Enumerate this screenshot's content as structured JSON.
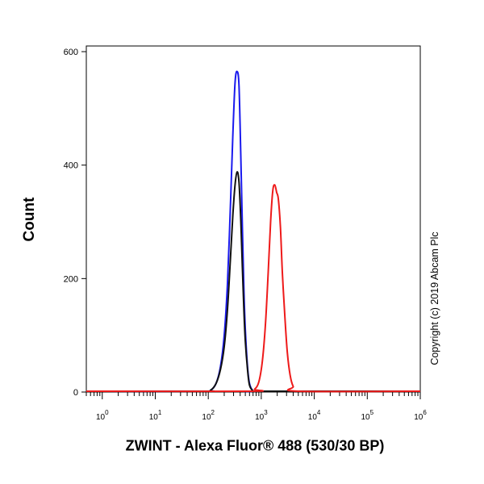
{
  "chart_data": {
    "type": "histogram",
    "xlabel": "ZWINT - Alexa Fluor® 488 (530/30 BP)",
    "ylabel": "Count",
    "copyright": "Copyright (c) 2019 Abcam Plc",
    "x_scale": "log",
    "xlim": [
      0.5,
      1000000
    ],
    "ylim": [
      0,
      610
    ],
    "yticks": [
      0,
      200,
      400,
      600
    ],
    "xticks": [
      {
        "base": "10",
        "exp": "0",
        "value": 1
      },
      {
        "base": "10",
        "exp": "1",
        "value": 10
      },
      {
        "base": "10",
        "exp": "2",
        "value": 100
      },
      {
        "base": "10",
        "exp": "3",
        "value": 1000
      },
      {
        "base": "10",
        "exp": "4",
        "value": 10000
      },
      {
        "base": "10",
        "exp": "5",
        "value": 100000
      },
      {
        "base": "10",
        "exp": "6",
        "value": 1000000
      }
    ],
    "series": [
      {
        "color": "#1a1aee",
        "x": [
          0.5,
          80,
          110,
          140,
          170,
          200,
          230,
          260,
          290,
          320,
          350,
          380,
          410,
          440,
          470,
          500,
          550,
          600,
          700,
          850,
          1000000
        ],
        "y": [
          0,
          0,
          3,
          15,
          45,
          100,
          190,
          320,
          450,
          545,
          565,
          540,
          420,
          290,
          180,
          110,
          45,
          15,
          2,
          0,
          0
        ]
      },
      {
        "color": "#111111",
        "x": [
          0.5,
          80,
          110,
          140,
          170,
          200,
          230,
          260,
          290,
          320,
          350,
          380,
          410,
          440,
          470,
          500,
          550,
          600,
          700,
          850,
          1000000
        ],
        "y": [
          0,
          0,
          3,
          15,
          40,
          80,
          145,
          230,
          310,
          365,
          388,
          370,
          305,
          220,
          145,
          90,
          40,
          12,
          2,
          0,
          0
        ]
      },
      {
        "color": "#ee1a1a",
        "x": [
          0.5,
          600,
          750,
          900,
          1050,
          1200,
          1350,
          1500,
          1650,
          1800,
          1950,
          2100,
          2300,
          2500,
          2800,
          3100,
          3500,
          4000,
          5000,
          1000000
        ],
        "y": [
          0,
          0,
          5,
          18,
          55,
          120,
          210,
          300,
          355,
          365,
          352,
          340,
          290,
          210,
          130,
          70,
          30,
          10,
          1,
          0
        ]
      }
    ]
  }
}
